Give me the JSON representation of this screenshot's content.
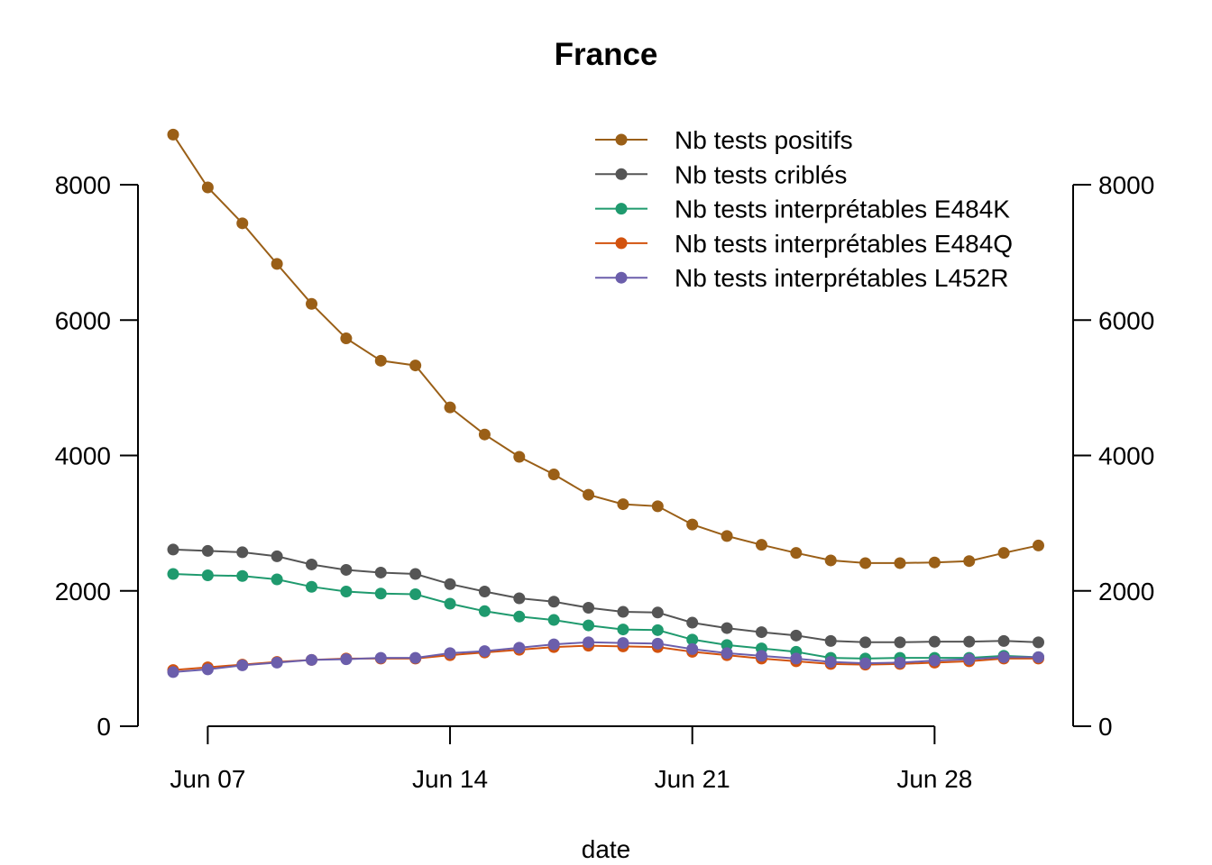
{
  "chart_data": {
    "type": "line",
    "title": "France",
    "xlabel": "date",
    "ylabel": "",
    "ylim": [
      0,
      8000
    ],
    "yticks": [
      "0",
      "2000",
      "4000",
      "6000",
      "8000"
    ],
    "xticks": [
      "Jun 07",
      "Jun 14",
      "Jun 21",
      "Jun 28"
    ],
    "xtick_dates": [
      "2021-06-07",
      "2021-06-14",
      "2021-06-21",
      "2021-06-28"
    ],
    "x": [
      "2021-06-06",
      "2021-06-07",
      "2021-06-08",
      "2021-06-09",
      "2021-06-10",
      "2021-06-11",
      "2021-06-12",
      "2021-06-13",
      "2021-06-14",
      "2021-06-15",
      "2021-06-16",
      "2021-06-17",
      "2021-06-18",
      "2021-06-19",
      "2021-06-20",
      "2021-06-21",
      "2021-06-22",
      "2021-06-23",
      "2021-06-24",
      "2021-06-25",
      "2021-06-26",
      "2021-06-27",
      "2021-06-28",
      "2021-06-29",
      "2021-06-30",
      "2021-07-01"
    ],
    "grid": false,
    "legend_position": "top-right",
    "right_axis": true,
    "series": [
      {
        "name": "Nb tests positifs",
        "color": "#9A5F17",
        "values": [
          8740,
          7960,
          7430,
          6830,
          6240,
          5730,
          5400,
          5330,
          4710,
          4310,
          3980,
          3720,
          3420,
          3280,
          3250,
          2980,
          2810,
          2680,
          2560,
          2450,
          2410,
          2410,
          2420,
          2440,
          2560,
          2670
        ]
      },
      {
        "name": "Nb tests criblés",
        "color": "#555555",
        "values": [
          2610,
          2590,
          2570,
          2510,
          2390,
          2310,
          2270,
          2250,
          2100,
          1990,
          1890,
          1840,
          1750,
          1690,
          1680,
          1530,
          1450,
          1390,
          1340,
          1260,
          1240,
          1240,
          1250,
          1250,
          1260,
          1240
        ]
      },
      {
        "name": "Nb tests interprétables E484K",
        "color": "#1F9A6E",
        "values": [
          2250,
          2230,
          2220,
          2170,
          2060,
          1990,
          1960,
          1950,
          1810,
          1700,
          1620,
          1570,
          1490,
          1430,
          1420,
          1280,
          1200,
          1150,
          1100,
          1010,
          1000,
          1010,
          1010,
          1010,
          1040,
          1020
        ]
      },
      {
        "name": "Nb tests interprétables E484Q",
        "color": "#D2520E",
        "values": [
          830,
          870,
          910,
          950,
          980,
          1000,
          1000,
          1000,
          1050,
          1090,
          1130,
          1170,
          1190,
          1180,
          1170,
          1100,
          1050,
          1000,
          960,
          920,
          910,
          920,
          940,
          960,
          1000,
          1000
        ]
      },
      {
        "name": "Nb tests interprétables L452R",
        "color": "#6B5EAB",
        "values": [
          800,
          840,
          900,
          940,
          980,
          990,
          1010,
          1010,
          1080,
          1110,
          1160,
          1210,
          1240,
          1230,
          1220,
          1140,
          1080,
          1040,
          1000,
          950,
          930,
          940,
          970,
          990,
          1020,
          1020
        ]
      }
    ]
  }
}
